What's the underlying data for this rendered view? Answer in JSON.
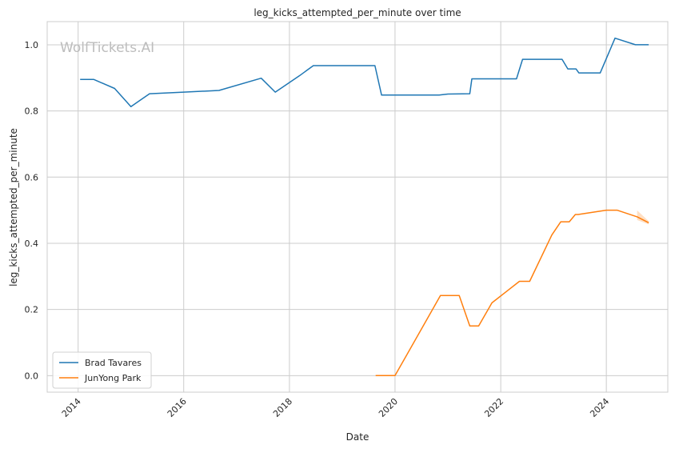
{
  "chart_data": {
    "type": "line",
    "title": "leg_kicks_attempted_per_minute over time",
    "xlabel": "Date",
    "ylabel": "leg_kicks_attempted_per_minute",
    "watermark": "WolfTickets.AI",
    "xlim": [
      "2013-06-01",
      "2025-03-01"
    ],
    "ylim": [
      -0.05,
      1.07
    ],
    "x_ticks": [
      "2014",
      "2016",
      "2018",
      "2020",
      "2022",
      "2024"
    ],
    "y_ticks": [
      "0.0",
      "0.2",
      "0.4",
      "0.6",
      "0.8",
      "1.0"
    ],
    "grid": true,
    "legend_position": "lower-left",
    "series": [
      {
        "name": "Brad Tavares",
        "color": "#1f77b4",
        "x": [
          "2014-01-15",
          "2014-04-20",
          "2014-09-10",
          "2015-01-01",
          "2015-05-10",
          "2016-01-01",
          "2016-09-01",
          "2017-06-20",
          "2017-09-25",
          "2018-03-10",
          "2018-06-15",
          "2019-08-15",
          "2019-09-30",
          "2020-11-01",
          "2021-01-01",
          "2021-06-01",
          "2021-06-15",
          "2022-04-20",
          "2022-06-01",
          "2023-03-01",
          "2023-04-10",
          "2023-06-05",
          "2023-06-25",
          "2023-11-20",
          "2024-03-01",
          "2024-07-20",
          "2024-10-20"
        ],
        "y": [
          0.895,
          0.895,
          0.868,
          0.813,
          0.852,
          0.857,
          0.862,
          0.899,
          0.857,
          0.906,
          0.937,
          0.937,
          0.848,
          0.848,
          0.851,
          0.852,
          0.897,
          0.897,
          0.956,
          0.956,
          0.927,
          0.927,
          0.915,
          0.915,
          1.02,
          1.0,
          1.0
        ]
      },
      {
        "name": "JunYong Park",
        "color": "#ff7f0e",
        "x": [
          "2019-08-20",
          "2020-01-01",
          "2020-11-10",
          "2021-03-20",
          "2021-06-01",
          "2021-08-01",
          "2021-11-01",
          "2022-05-10",
          "2022-07-20",
          "2022-12-20",
          "2023-02-20",
          "2023-04-20",
          "2023-06-01",
          "2023-06-20",
          "2024-01-01",
          "2024-03-15",
          "2024-08-01",
          "2024-10-20"
        ],
        "y": [
          0.0,
          0.0,
          0.242,
          0.242,
          0.15,
          0.15,
          0.22,
          0.285,
          0.285,
          0.425,
          0.465,
          0.465,
          0.487,
          0.487,
          0.5,
          0.5,
          0.48,
          0.462
        ]
      }
    ]
  }
}
